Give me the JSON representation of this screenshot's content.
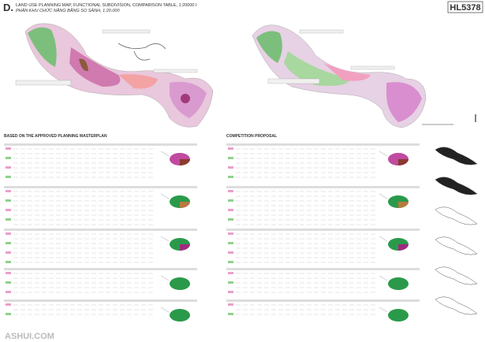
{
  "header": {
    "marker": "D.",
    "title": "LAND USE PLANNING MAP, FUNCTIONAL SUBDIVISION, COMPARISON TABLE, 1:20000 I",
    "subtitle": "PHÂN KHU CHỨC NĂNG BẰNG SO SÁNH, 1:20.000",
    "code": "HL5378"
  },
  "left": {
    "heading": "BASED ON THE APPROVED PLANNING MASTERPLAN"
  },
  "right": {
    "heading": "COMPETITION PROPOSAL"
  },
  "watermark": "ASHUI.COM"
}
